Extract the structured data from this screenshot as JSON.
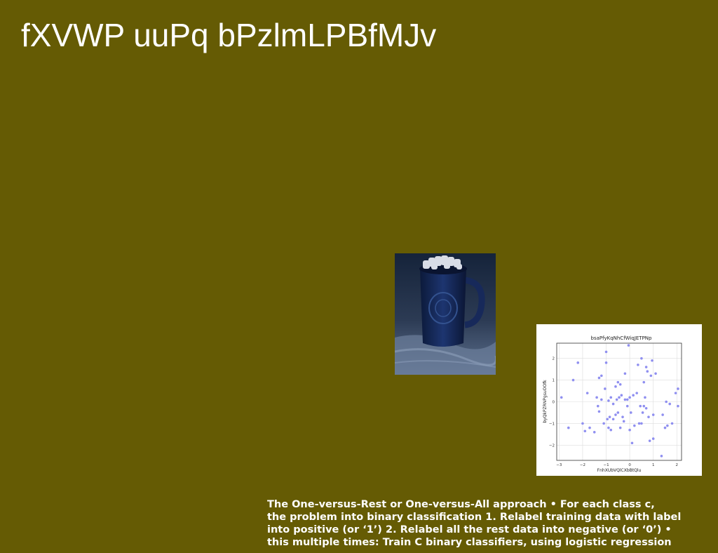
{
  "slide": {
    "title": "fXVWP uuPq bPzlmLPBfMJv",
    "body_lines": [
      "The One-versus-Rest or One-versus-All approach • For each class c,",
      "the problem into binary classification 1. Relabel training data with label",
      "into positive (or ‘1’) 2. Relabel all the rest data into negative (or ‘0’) •",
      "this multiple times: Train C binary classifiers, using logistic regression"
    ]
  },
  "colors": {
    "background": "#655b04",
    "text": "#ffffff",
    "points": "#8f8ff0"
  },
  "chart_data": {
    "type": "scatter",
    "title": "bsaPfyKqNhCfWiqJETPNp",
    "xlabel": "FnhXUbVQlCXbBtQlu",
    "ylabel": "byQkPZRNPgsuOOfk",
    "xlim": [
      -3.1,
      2.2
    ],
    "ylim": [
      -2.7,
      2.7
    ],
    "xticks": [
      "-3",
      "-2",
      "-1",
      "0",
      "1",
      "2"
    ],
    "yticks": [
      "-2",
      "-1",
      "0",
      "1",
      "2"
    ],
    "grid": true,
    "x": [
      -2.9,
      -2.6,
      -2.4,
      -2.2,
      -2.0,
      -1.9,
      -1.8,
      -1.7,
      -1.5,
      -1.4,
      -1.35,
      -1.3,
      -1.3,
      -1.2,
      -1.2,
      -1.1,
      -1.05,
      -1.0,
      -1.0,
      -0.95,
      -0.9,
      -0.9,
      -0.85,
      -0.8,
      -0.8,
      -0.7,
      -0.7,
      -0.6,
      -0.6,
      -0.55,
      -0.5,
      -0.5,
      -0.45,
      -0.4,
      -0.4,
      -0.35,
      -0.3,
      -0.25,
      -0.2,
      -0.2,
      -0.1,
      -0.1,
      -0.05,
      0.0,
      0.0,
      0.05,
      0.1,
      0.15,
      0.2,
      0.3,
      0.35,
      0.4,
      0.45,
      0.5,
      0.5,
      0.55,
      0.6,
      0.6,
      0.65,
      0.7,
      0.7,
      0.75,
      0.8,
      0.85,
      0.9,
      0.95,
      1.0,
      1.0,
      1.1,
      1.35,
      1.4,
      1.5,
      1.55,
      1.6,
      1.7,
      1.8,
      1.95,
      2.05,
      2.05
    ],
    "y": [
      0.2,
      -1.2,
      1.0,
      1.8,
      -1.0,
      -1.35,
      0.4,
      -1.2,
      -1.4,
      0.2,
      -0.2,
      1.1,
      -0.45,
      0.1,
      1.2,
      -1.0,
      0.6,
      1.8,
      2.3,
      -0.8,
      0.05,
      -1.2,
      -0.7,
      0.2,
      -1.3,
      -0.8,
      -0.1,
      0.7,
      -0.6,
      0.1,
      0.9,
      -0.5,
      0.2,
      -1.2,
      0.8,
      0.3,
      -0.7,
      -0.9,
      0.1,
      1.3,
      0.1,
      -0.2,
      2.6,
      0.2,
      -1.3,
      -0.5,
      -1.9,
      0.3,
      -1.1,
      0.4,
      1.7,
      -1.0,
      -0.2,
      2.0,
      -1.0,
      -0.5,
      0.9,
      -0.2,
      0.2,
      1.6,
      -0.3,
      1.4,
      -0.7,
      -1.8,
      1.2,
      1.9,
      -0.6,
      -1.7,
      1.3,
      -2.5,
      -0.6,
      -1.2,
      0.0,
      -1.1,
      -0.1,
      -1.0,
      0.4,
      0.6,
      -0.2
    ]
  }
}
